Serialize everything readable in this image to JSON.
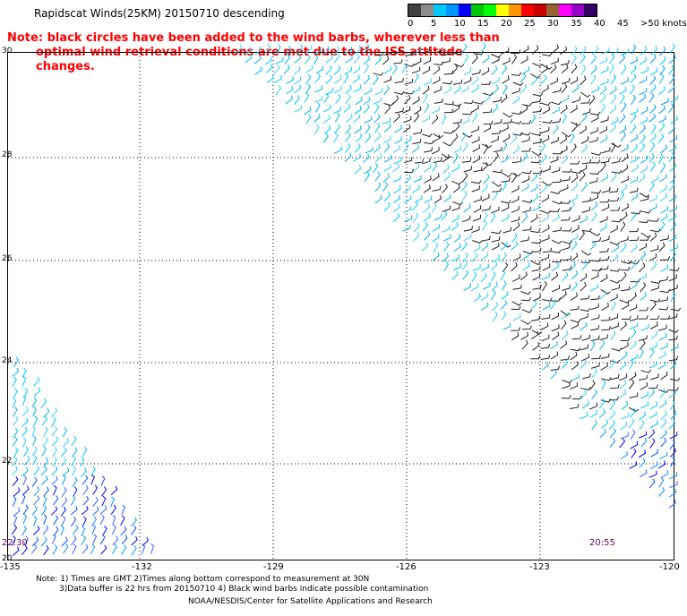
{
  "title": "Rapidscat Winds(25KM) 20150710 descending",
  "note": {
    "line1": "Note: black circles have been added to the wind barbs, wherever less than",
    "line2": "optimal wind retrieval conditions are met due to the ISS attitude changes."
  },
  "legend": {
    "colors": [
      "#404040",
      "#8c8c8c",
      "#00c8ff",
      "#0096ff",
      "#0000ff",
      "#00c800",
      "#00ff00",
      "#ffff00",
      "#ff9600",
      "#ff0000",
      "#c80000",
      "#966432",
      "#ff00ff",
      "#9600c8",
      "#320064"
    ],
    "labels": [
      "0",
      "5",
      "10",
      "15",
      "20",
      "25",
      "30",
      "35",
      "40",
      "45",
      ">50 knots"
    ]
  },
  "lat_labels": [
    "30",
    "28",
    "26",
    "24",
    "22",
    "20"
  ],
  "lon_labels": [
    "-135",
    "-132",
    "-129",
    "-126",
    "-123",
    "-120"
  ],
  "time_labels": {
    "left": "22:30",
    "right": "20:55"
  },
  "footnote": {
    "line1": "Note: 1) Times are GMT 2)Times along bottom correspond to measurement at 30N",
    "line2": "3)Data buffer is 22 hrs from 20150710 4) Black wind barbs indicate possible contamination"
  },
  "credit": "NOAA/NESDIS/Center for Satellite Applications and Research"
}
